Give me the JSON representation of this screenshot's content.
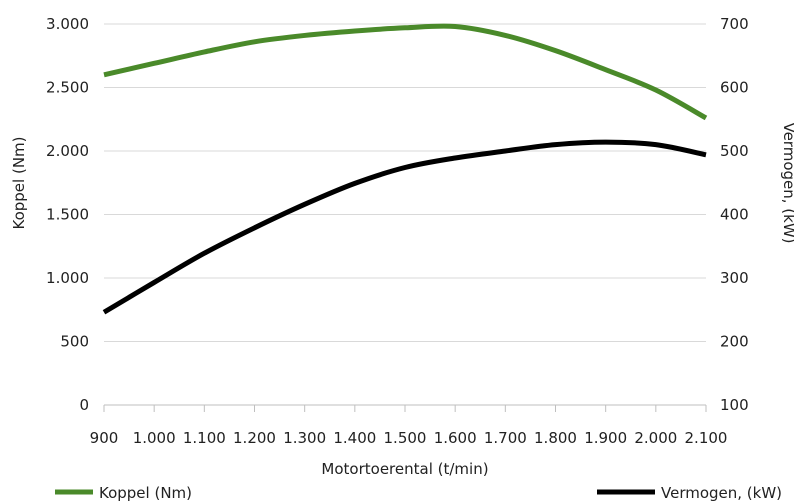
{
  "chart_data": {
    "type": "line",
    "title": "",
    "xlabel": "Motortoerental (t/min)",
    "ylabel_left": "Koppel (Nm)",
    "ylabel_right": "Vermogen, (kW)",
    "x": [
      900,
      1000,
      1100,
      1200,
      1300,
      1400,
      1500,
      1600,
      1700,
      1800,
      1900,
      2000,
      2100
    ],
    "x_tick_labels": [
      "900",
      "1.000",
      "1.100",
      "1.200",
      "1.300",
      "1.400",
      "1.500",
      "1.600",
      "1.700",
      "1.800",
      "1.900",
      "2.000",
      "2.100"
    ],
    "xlim": [
      900,
      2100
    ],
    "ylim_left": [
      0,
      3000
    ],
    "ylim_right": [
      100,
      700
    ],
    "y_left_ticks": [
      0,
      500,
      1000,
      1500,
      2000,
      2500,
      3000
    ],
    "y_left_tick_labels": [
      "0",
      "500",
      "1.000",
      "1.500",
      "2.000",
      "2.500",
      "3.000"
    ],
    "y_right_ticks": [
      100,
      200,
      300,
      400,
      500,
      600,
      700
    ],
    "y_right_tick_labels": [
      "100",
      "200",
      "300",
      "400",
      "500",
      "600",
      "700"
    ],
    "grid": "horizontal",
    "legend_position": "bottom",
    "series": [
      {
        "name": "Koppel (Nm)",
        "axis": "left",
        "color": "#4a8a2a",
        "values": [
          2600,
          2690,
          2780,
          2860,
          2910,
          2945,
          2970,
          2980,
          2910,
          2790,
          2640,
          2480,
          2260
        ]
      },
      {
        "name": "Vermogen, (kW)",
        "axis": "right",
        "color": "#000000",
        "values": [
          246,
          293,
          339,
          379,
          416,
          449,
          474,
          489,
          500,
          510,
          514,
          510,
          494
        ]
      }
    ]
  }
}
